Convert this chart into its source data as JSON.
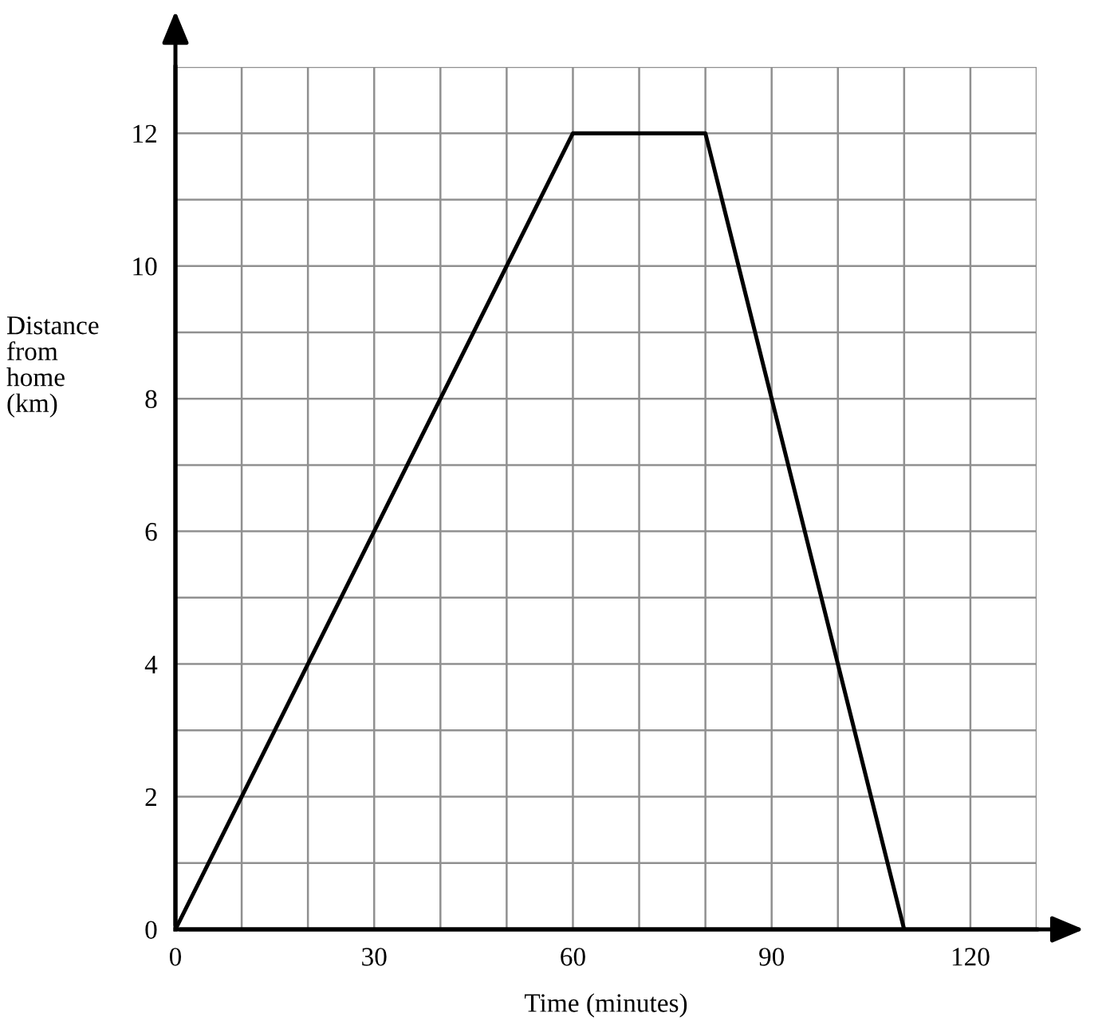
{
  "chart_data": {
    "type": "line",
    "xlabel": "Time (minutes)",
    "ylabel": "Distance\nfrom\nhome\n(km)",
    "x": [
      0,
      60,
      80,
      110
    ],
    "series": [
      {
        "color": "#000000",
        "values": [
          0,
          12,
          12,
          0
        ]
      }
    ],
    "xlim": [
      0,
      130
    ],
    "ylim": [
      0,
      13
    ],
    "xticks": [
      0,
      {
        "value": 10,
        "label": null
      },
      {
        "value": 20,
        "label": null
      },
      30,
      {
        "value": 40,
        "label": null
      },
      {
        "value": 50,
        "label": null
      },
      60,
      {
        "value": 70,
        "label": null
      },
      {
        "value": 80,
        "label": null
      },
      90,
      {
        "value": 100,
        "label": null
      },
      {
        "value": 110,
        "label": null
      },
      120,
      {
        "value": 130,
        "label": null
      }
    ],
    "yticks": [
      0,
      {
        "value": 1,
        "label": null
      },
      2,
      {
        "value": 3,
        "label": null
      },
      4,
      {
        "value": 5,
        "label": null
      },
      6,
      {
        "value": 7,
        "label": null
      },
      8,
      {
        "value": 9,
        "label": null
      },
      10,
      {
        "value": 11,
        "label": null
      },
      12,
      {
        "value": 13,
        "label": null
      }
    ],
    "grid": true,
    "marker": "none",
    "line_style": "solid"
  }
}
